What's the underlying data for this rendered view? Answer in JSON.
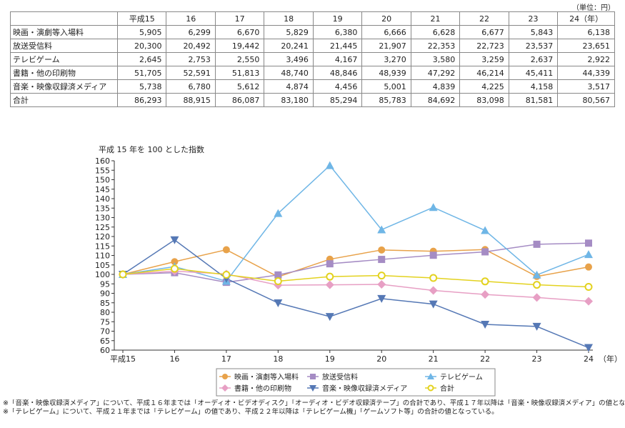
{
  "unit_label": "（単位：円）",
  "table": {
    "columns": [
      "平成15",
      "16",
      "17",
      "18",
      "19",
      "20",
      "21",
      "22",
      "23",
      "24（年）"
    ],
    "rows": [
      {
        "label": "映画・演劇等入場料",
        "values": [
          "5,905",
          "6,299",
          "6,670",
          "5,829",
          "6,380",
          "6,666",
          "6,628",
          "6,677",
          "5,843",
          "6,138"
        ]
      },
      {
        "label": "放送受信料",
        "values": [
          "20,300",
          "20,492",
          "19,442",
          "20,241",
          "21,445",
          "21,907",
          "22,353",
          "22,723",
          "23,537",
          "23,651"
        ]
      },
      {
        "label": "テレビゲーム",
        "values": [
          "2,645",
          "2,753",
          "2,550",
          "3,496",
          "4,167",
          "3,270",
          "3,580",
          "3,259",
          "2,637",
          "2,922"
        ]
      },
      {
        "label": "書籍・他の印刷物",
        "values": [
          "51,705",
          "52,591",
          "51,813",
          "48,740",
          "48,846",
          "48,939",
          "47,292",
          "46,214",
          "45,411",
          "44,339"
        ]
      },
      {
        "label": "音楽・映像収録済メディア",
        "values": [
          "5,738",
          "6,780",
          "5,612",
          "4,874",
          "4,456",
          "5,001",
          "4,839",
          "4,225",
          "4,158",
          "3,517"
        ]
      },
      {
        "label": "合計",
        "values": [
          "86,293",
          "88,915",
          "86,087",
          "83,180",
          "85,294",
          "85,783",
          "84,692",
          "83,098",
          "81,581",
          "80,567"
        ]
      }
    ]
  },
  "chart_data": {
    "type": "line",
    "title": "平成 15 年を 100 とした指数",
    "categories": [
      "平成15",
      "16",
      "17",
      "18",
      "19",
      "20",
      "21",
      "22",
      "23",
      "24"
    ],
    "x_unit": "（年）",
    "ylim": [
      60,
      160
    ],
    "yticks": [
      60,
      65,
      70,
      75,
      80,
      85,
      90,
      95,
      100,
      105,
      110,
      115,
      120,
      125,
      130,
      135,
      140,
      145,
      150,
      155,
      160
    ],
    "grid": false,
    "legend_position": "bottom",
    "series": [
      {
        "name": "映画・演劇等入場料",
        "color": "#e8a24a",
        "marker": "circle",
        "values": [
          100,
          106.7,
          113.0,
          98.7,
          108.0,
          112.9,
          112.2,
          113.1,
          98.9,
          103.9
        ]
      },
      {
        "name": "放送受信料",
        "color": "#a58cc4",
        "marker": "square",
        "values": [
          100,
          100.9,
          95.8,
          99.7,
          105.6,
          107.9,
          110.1,
          111.9,
          115.9,
          116.5
        ]
      },
      {
        "name": "テレビゲーム",
        "color": "#6fb6e6",
        "marker": "triangle-up",
        "values": [
          100,
          104.1,
          96.4,
          132.2,
          157.5,
          123.6,
          135.4,
          123.2,
          99.7,
          110.5
        ]
      },
      {
        "name": "書籍・他の印刷物",
        "color": "#e79fc4",
        "marker": "diamond",
        "values": [
          100,
          101.7,
          100.2,
          94.3,
          94.5,
          94.7,
          91.5,
          89.4,
          87.8,
          85.8
        ]
      },
      {
        "name": "音楽・映像収録済メディア",
        "color": "#5578b5",
        "marker": "triangle-down",
        "values": [
          100,
          118.2,
          97.8,
          84.9,
          77.7,
          87.2,
          84.3,
          73.6,
          72.5,
          61.3
        ]
      },
      {
        "name": "合計",
        "color": "#e3d21f",
        "marker": "circle-open",
        "values": [
          100,
          103.0,
          99.8,
          96.4,
          98.8,
          99.4,
          98.1,
          96.3,
          94.5,
          93.4
        ]
      }
    ]
  },
  "notes": [
    "※「音楽・映像収録済メディア」について、平成１６年までは「オーディオ・ビデオディスク」「オーディオ・ビデオ収録済テープ」の合計であり、平成１７年以降は「音楽・映像収録済メディア」の値となっている",
    "※「テレビゲーム」について、平成２１年までは「テレビゲーム」の値であり、平成２２年以降は「テレビゲーム機」「ゲームソフト等」の合計の値となっている。"
  ]
}
